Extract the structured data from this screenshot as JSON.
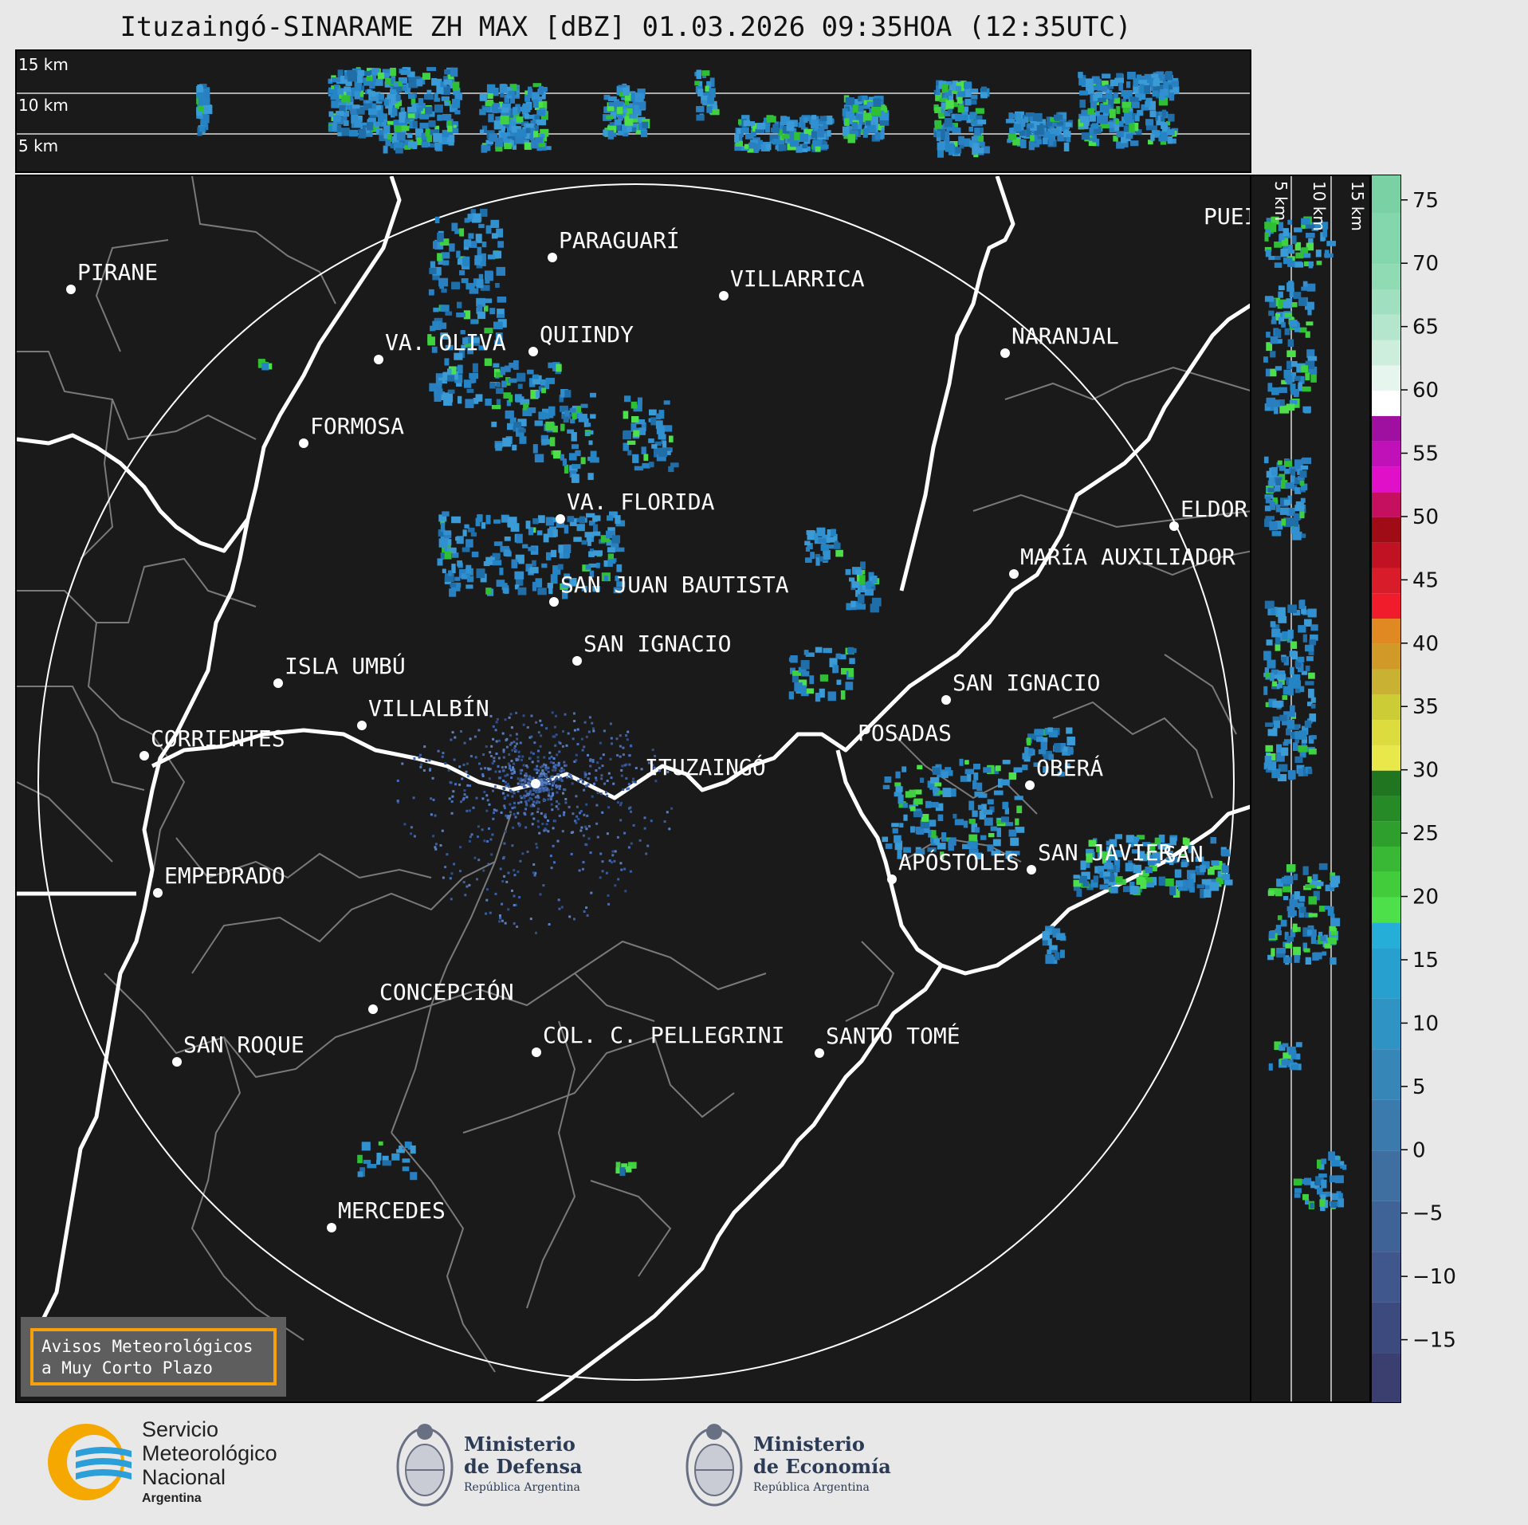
{
  "title": "Ituzaingó-SINARAME ZH MAX [dBZ] 01.03.2026 09:35HOA (12:35UTC)",
  "top_panel": {
    "height_labels": [
      "15 km",
      "10 km",
      "5 km"
    ]
  },
  "right_panel": {
    "height_labels": [
      "5 km",
      "10 km",
      "15 km"
    ]
  },
  "map": {
    "radar_site": "ITUZAINGÓ",
    "cities": [
      {
        "name": "PARAGUARÍ"
      },
      {
        "name": "VILLARRICA"
      },
      {
        "name": "PIRANE"
      },
      {
        "name": "QUIINDY"
      },
      {
        "name": "VA. OLIVA"
      },
      {
        "name": "NARANJAL"
      },
      {
        "name": "FORMOSA"
      },
      {
        "name": "VA. FLORIDA"
      },
      {
        "name": "ELDOR"
      },
      {
        "name": "MARÍA AUXILIADOR"
      },
      {
        "name": "SAN JUAN BAUTISTA"
      },
      {
        "name": "SAN IGNACIO"
      },
      {
        "name": "ISLA UMBÚ"
      },
      {
        "name": "VILLALBÍN"
      },
      {
        "name": "SAN IGNACIO"
      },
      {
        "name": "POSADAS"
      },
      {
        "name": "CORRIENTES"
      },
      {
        "name": "OBERÁ"
      },
      {
        "name": "ITUZAINGÓ"
      },
      {
        "name": "APÓSTOLES"
      },
      {
        "name": "SAN JAVIER"
      },
      {
        "name": "SAN"
      },
      {
        "name": "EMPEDRADO"
      },
      {
        "name": "CONCEPCIÓN"
      },
      {
        "name": "COL. C. PELLEGRINI"
      },
      {
        "name": "SANTO TOMÉ"
      },
      {
        "name": "SAN ROQUE"
      },
      {
        "name": "MERCEDES"
      },
      {
        "name": "PUEI"
      }
    ]
  },
  "colorbar": {
    "unit": "dBZ",
    "ticks": [
      "75",
      "70",
      "65",
      "60",
      "55",
      "50",
      "45",
      "40",
      "35",
      "30",
      "25",
      "20",
      "15",
      "10",
      "5",
      "0",
      "−5",
      "−10",
      "−15"
    ],
    "tick_values": [
      75,
      70,
      65,
      60,
      55,
      50,
      45,
      40,
      35,
      30,
      25,
      20,
      15,
      10,
      5,
      0,
      -5,
      -10,
      -15
    ],
    "range": [
      -20,
      77
    ]
  },
  "warning": {
    "line1": "Avisos Meteorológicos",
    "line2": "a Muy Corto Plazo"
  },
  "footer": {
    "smn": {
      "line1": "Servicio",
      "line2": "Meteorológico",
      "line3": "Nacional",
      "line4": "Argentina"
    },
    "defensa": {
      "line1": "Ministerio",
      "line2": "de Defensa",
      "line3": "República Argentina"
    },
    "economia": {
      "line1": "Ministerio",
      "line2": "de Economía",
      "line3": "República Argentina"
    }
  },
  "colors": {
    "background": "#1a1a1a",
    "boundary": "#ffffff",
    "province_lines": "#7a7a7a",
    "warning_border": "#f5a10d",
    "echo_light": "#2e8fcf",
    "echo_medium": "#3fd13f"
  }
}
